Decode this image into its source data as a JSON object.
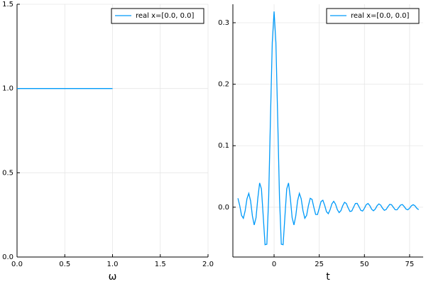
{
  "chart_data": [
    {
      "type": "line",
      "xlabel": "ω",
      "x": [
        0,
        1
      ],
      "series": [
        {
          "name": "real x=[0.0, 0.0]",
          "color": "#009af9",
          "values": [
            1,
            1
          ]
        }
      ],
      "xlim": [
        0,
        2
      ],
      "xticks": [
        {
          "value": 0,
          "label": "0.0"
        },
        {
          "value": 0.5,
          "label": "0.5"
        },
        {
          "value": 1,
          "label": "1.0"
        },
        {
          "value": 1.5,
          "label": "1.5"
        },
        {
          "value": 2,
          "label": "2.0"
        }
      ],
      "ylim": [
        0,
        1.5
      ],
      "yticks": [
        {
          "value": 0,
          "label": "0.0"
        },
        {
          "value": 0.5,
          "label": "0.5"
        },
        {
          "value": 1,
          "label": "1.0"
        },
        {
          "value": 1.5,
          "label": "1.5"
        }
      ],
      "grid": true,
      "legend": "top-right"
    },
    {
      "type": "line",
      "xlabel": "t",
      "x": [
        -20,
        -19,
        -18,
        -17,
        -16,
        -15,
        -14,
        -13,
        -12,
        -11,
        -10,
        -9,
        -8,
        -7,
        -6,
        -5,
        -4,
        -3,
        -2,
        -1,
        0,
        1,
        2,
        3,
        4,
        5,
        6,
        7,
        8,
        9,
        10,
        11,
        12,
        13,
        14,
        15,
        16,
        17,
        18,
        19,
        20,
        21,
        22,
        23,
        24,
        25,
        26,
        27,
        28,
        29,
        30,
        31,
        32,
        33,
        34,
        35,
        36,
        37,
        38,
        39,
        40,
        41,
        42,
        43,
        44,
        45,
        46,
        47,
        48,
        49,
        50,
        51,
        52,
        53,
        54,
        55,
        56,
        57,
        58,
        59,
        60,
        61,
        62,
        63,
        64,
        65,
        66,
        67,
        68,
        69,
        70,
        71,
        72,
        73,
        74,
        75,
        76,
        77,
        78,
        79,
        80
      ],
      "series": [
        {
          "name": "real x=[0.0, 0.0]",
          "color": "#009af9",
          "values": [
            0.0145,
            0.0025,
            -0.0133,
            -0.018,
            -0.0057,
            0.0138,
            0.0225,
            0.0103,
            -0.0142,
            -0.0289,
            -0.0173,
            0.0146,
            0.0394,
            0.0299,
            -0.0148,
            -0.061,
            -0.0602,
            0.015,
            0.1447,
            0.2679,
            0.3183,
            0.2679,
            0.1447,
            0.015,
            -0.0602,
            -0.061,
            -0.0148,
            0.0299,
            0.0394,
            0.0146,
            -0.0173,
            -0.0289,
            -0.0142,
            0.0103,
            0.0225,
            0.0138,
            -0.0057,
            -0.018,
            -0.0133,
            0.0025,
            0.0145,
            0.0127,
            -0.0001,
            -0.0117,
            -0.012,
            -0.0017,
            0.0093,
            0.0113,
            0.0031,
            -0.0073,
            -0.0105,
            -0.0041,
            0.0055,
            0.0096,
            0.005,
            -0.0039,
            -0.0088,
            -0.0055,
            0.0025,
            0.0079,
            0.0059,
            -0.0012,
            -0.0069,
            -0.0062,
            0.0001,
            0.006,
            0.0062,
            0.0008,
            -0.0051,
            -0.0062,
            -0.0017,
            0.0042,
            0.006,
            0.0024,
            -0.0033,
            -0.0058,
            -0.003,
            0.0024,
            0.0054,
            0.0034,
            -0.0016,
            -0.005,
            -0.0038,
            0.0008,
            0.0046,
            0.004,
            -0.0001,
            -0.0041,
            -0.0042,
            -0.0005,
            0.0035,
            0.0043,
            0.0011,
            -0.003,
            -0.0042,
            -0.0016,
            0.0024,
            0.0041,
            0.0021,
            -0.0018,
            -0.004
          ]
        }
      ],
      "xlim": [
        -22.8,
        82.5
      ],
      "xticks": [
        0,
        25,
        50,
        75
      ],
      "ylim": [
        -0.081,
        0.33
      ],
      "yticks": [
        {
          "value": 0,
          "label": "0.0"
        },
        {
          "value": 0.1,
          "label": "0.1"
        },
        {
          "value": 0.2,
          "label": "0.2"
        },
        {
          "value": 0.3,
          "label": "0.3"
        }
      ],
      "grid": true,
      "legend": "top-right"
    }
  ]
}
